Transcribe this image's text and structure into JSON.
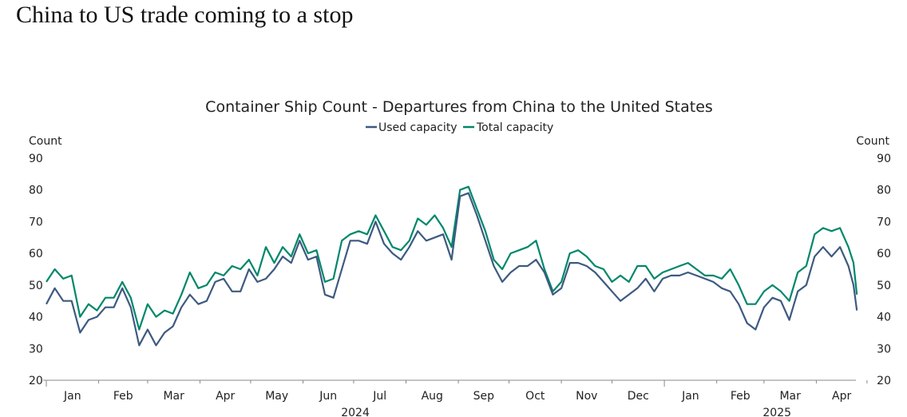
{
  "headline": "China to US trade coming to a stop",
  "chart_data": {
    "type": "line",
    "title": "Container Ship Count - Departures from China to the United States",
    "ylabel_left": "Count",
    "ylabel_right": "Count",
    "ylim": [
      20,
      90
    ],
    "yticks": [
      20,
      30,
      40,
      50,
      60,
      70,
      80,
      90
    ],
    "x_start_date": "2024-01-01",
    "x_step_days": 5,
    "x_unit": "days since 2024-01-01",
    "x": [
      0,
      5,
      10,
      15,
      20,
      25,
      30,
      35,
      40,
      45,
      50,
      55,
      60,
      65,
      70,
      75,
      80,
      85,
      90,
      95,
      100,
      105,
      110,
      115,
      120,
      125,
      130,
      135,
      140,
      145,
      150,
      155,
      160,
      165,
      170,
      175,
      180,
      185,
      190,
      195,
      200,
      205,
      210,
      215,
      220,
      225,
      230,
      235,
      240,
      245,
      250,
      255,
      260,
      265,
      270,
      275,
      280,
      285,
      290,
      295,
      300,
      305,
      310,
      315,
      320,
      325,
      330,
      335,
      340,
      345,
      350,
      355,
      360,
      365,
      370,
      375,
      380,
      385,
      390,
      395,
      400,
      405,
      410,
      415,
      420,
      425,
      430,
      435,
      440,
      445,
      450,
      455,
      460,
      465,
      470,
      475,
      478,
      480
    ],
    "month_labels": [
      "Jan",
      "Feb",
      "Mar",
      "Apr",
      "May",
      "Jun",
      "Jul",
      "Aug",
      "Sep",
      "Oct",
      "Nov",
      "Dec",
      "Jan",
      "Feb",
      "Mar",
      "Apr"
    ],
    "month_start_days": [
      0,
      31,
      60,
      91,
      121,
      152,
      182,
      213,
      244,
      274,
      305,
      335,
      366,
      397,
      425,
      456
    ],
    "year_labels": [
      {
        "label": "2024",
        "from_day": 0,
        "to_day": 366
      },
      {
        "label": "2025",
        "from_day": 366,
        "to_day": 490
      }
    ],
    "x_end_day": 480,
    "legend_position": "top-center",
    "grid": false,
    "series": [
      {
        "name": "Used capacity",
        "color": "#3d5a80",
        "values": [
          44,
          49,
          45,
          45,
          35,
          39,
          40,
          43,
          43,
          49,
          43,
          31,
          36,
          31,
          35,
          37,
          43,
          47,
          44,
          45,
          51,
          52,
          48,
          48,
          55,
          51,
          52,
          55,
          59,
          57,
          64,
          58,
          59,
          47,
          46,
          55,
          64,
          64,
          63,
          70,
          63,
          60,
          58,
          62,
          67,
          64,
          65,
          66,
          58,
          78,
          79,
          72,
          64,
          56,
          51,
          54,
          56,
          56,
          58,
          54,
          47,
          49,
          57,
          57,
          56,
          54,
          51,
          48,
          45,
          47,
          49,
          52,
          48,
          52,
          53,
          53,
          54,
          53,
          52,
          51,
          49,
          48,
          44,
          38,
          36,
          43,
          46,
          45,
          39,
          48,
          50,
          59,
          62,
          59,
          62,
          56,
          50,
          42
        ]
      },
      {
        "name": "Total capacity",
        "color": "#00876a",
        "values": [
          51,
          55,
          52,
          53,
          40,
          44,
          42,
          46,
          46,
          51,
          46,
          36,
          44,
          40,
          42,
          41,
          47,
          54,
          49,
          50,
          54,
          53,
          56,
          55,
          58,
          53,
          62,
          57,
          62,
          59,
          66,
          60,
          61,
          51,
          52,
          64,
          66,
          67,
          66,
          72,
          67,
          62,
          61,
          64,
          71,
          69,
          72,
          68,
          62,
          80,
          81,
          74,
          67,
          58,
          55,
          60,
          61,
          62,
          64,
          55,
          48,
          51,
          60,
          61,
          59,
          56,
          55,
          51,
          53,
          51,
          56,
          56,
          52,
          54,
          55,
          56,
          57,
          55,
          53,
          53,
          52,
          55,
          50,
          44,
          44,
          48,
          50,
          48,
          45,
          54,
          56,
          66,
          68,
          67,
          68,
          62,
          57,
          47
        ]
      }
    ]
  }
}
